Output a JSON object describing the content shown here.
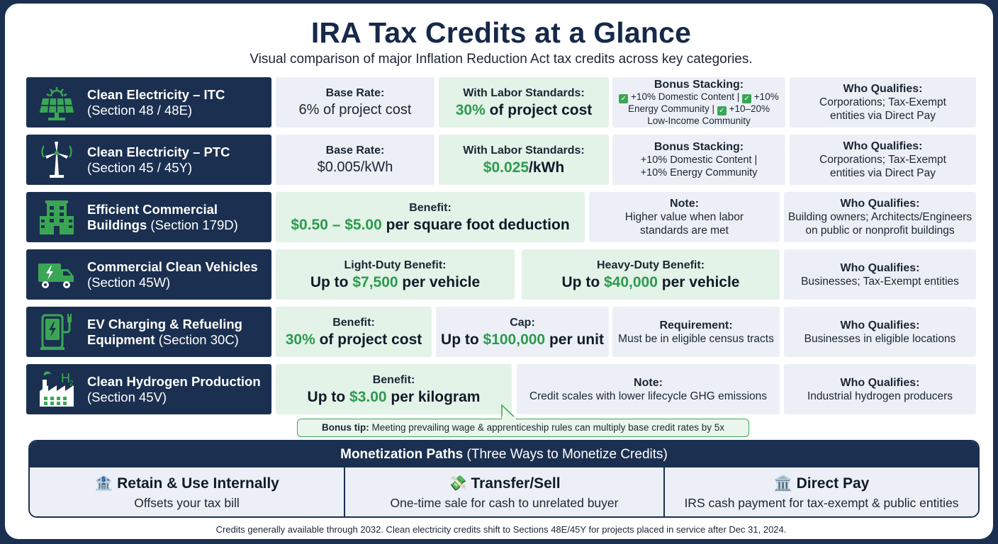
{
  "title": "IRA Tax Credits at a Glance",
  "subtitle": "Visual comparison of major Inflation Reduction Act tax credits across key categories.",
  "colors": {
    "navy": "#1b3050",
    "green": "#2d9a4f",
    "gray_cell": "#ecf0f6",
    "green_cell": "#e3f3e7"
  },
  "rows": [
    {
      "icon": "solar-panel-icon",
      "name": "Clean Electricity – ITC",
      "section": "(Section 48 / 48E)",
      "base_label": "Base Rate:",
      "base_value": "6% of project cost",
      "labor_label": "With Labor Standards:",
      "labor_value_highlight": "30%",
      "labor_value_rest": " of project cost",
      "bonus_label": "Bonus Stacking:",
      "bonus_line1": "+10% Domestic Content |",
      "bonus_line1b": "+10%",
      "bonus_line2": "Energy Community |",
      "bonus_line2b": "+10–20%",
      "bonus_line3": "Low-Income Community",
      "who_label": "Who Qualifies:",
      "who_line1": "Corporations; Tax-Exempt",
      "who_line2": "entities via Direct Pay"
    },
    {
      "icon": "wind-turbine-icon",
      "name": "Clean Electricity – PTC",
      "section": "(Section 45 / 45Y)",
      "base_label": "Base Rate:",
      "base_value": "$0.005/kWh",
      "labor_label": "With Labor Standards:",
      "labor_value_highlight": "$0.025",
      "labor_value_rest": "/kWh",
      "bonus_label": "Bonus Stacking:",
      "bonus_line1": "+10% Domestic Content |",
      "bonus_line2": "+10% Energy Community",
      "who_label": "Who Qualifies:",
      "who_line1": "Corporations; Tax-Exempt",
      "who_line2": "entities via Direct Pay"
    },
    {
      "icon": "office-building-icon",
      "name_line1": "Efficient Commercial",
      "name_line2": "Buildings",
      "section": "(Section 179D)",
      "benefit_label": "Benefit:",
      "benefit_highlight": "$0.50 – $5.00",
      "benefit_rest": " per square foot deduction",
      "note_label": "Note:",
      "note_line1": "Higher value when labor",
      "note_line2": "standards are met",
      "who_label": "Who Qualifies:",
      "who_line1": "Building owners; Architects/Engineers",
      "who_line2": "on public or nonprofit buildings"
    },
    {
      "icon": "electric-truck-icon",
      "name": "Commercial Clean Vehicles",
      "section": "(Section 45W)",
      "light_label": "Light-Duty Benefit:",
      "light_pre": "Up to ",
      "light_highlight": "$7,500",
      "light_rest": " per vehicle",
      "heavy_label": "Heavy-Duty Benefit:",
      "heavy_pre": "Up to ",
      "heavy_highlight": "$40,000",
      "heavy_rest": " per vehicle",
      "who_label": "Who Qualifies:",
      "who_line1": "Businesses; Tax-Exempt entities"
    },
    {
      "icon": "ev-charger-icon",
      "name_line1": "EV Charging & Refueling",
      "name_line2": "Equipment",
      "section": "(Section 30C)",
      "benefit_label": "Benefit:",
      "benefit_highlight": "30%",
      "benefit_rest": " of project cost",
      "cap_label": "Cap:",
      "cap_pre": "Up to ",
      "cap_highlight": "$100,000",
      "cap_rest": " per unit",
      "req_label": "Requirement:",
      "req_line1": "Must be in eligible census tracts",
      "who_label": "Who Qualifies:",
      "who_line1": "Businesses in eligible locations"
    },
    {
      "icon": "hydrogen-factory-icon",
      "name": "Clean Hydrogen Production",
      "section": "(Section 45V)",
      "benefit_label": "Benefit:",
      "benefit_pre": "Up to ",
      "benefit_highlight": "$3.00",
      "benefit_rest": " per kilogram",
      "note_label": "Note:",
      "note_line1": "Credit scales with lower lifecycle GHG emissions",
      "who_label": "Who Qualifies:",
      "who_line1": "Industrial hydrogen producers"
    }
  ],
  "tip": {
    "label": "Bonus tip:",
    "text": " Meeting prevailing wage & apprenticeship rules can multiply base credit rates by 5x"
  },
  "monetization": {
    "title": "Monetization Paths",
    "subtitle": " (Three Ways to Monetize Credits)",
    "paths": [
      {
        "icon": "bank-icon",
        "emoji": "🏦",
        "title": "Retain & Use Internally",
        "desc": "Offsets your tax bill"
      },
      {
        "icon": "cash-icon",
        "emoji": "💸",
        "title": "Transfer/Sell",
        "desc": "One-time sale for cash to unrelated buyer"
      },
      {
        "icon": "government-building-icon",
        "emoji": "🏛️",
        "title": "Direct Pay",
        "desc": "IRS cash payment for tax-exempt & public entities"
      }
    ]
  },
  "footnote": "Credits generally available through 2032. Clean electricity credits shift to Sections 48E/45Y for projects placed in service after Dec 31, 2024."
}
